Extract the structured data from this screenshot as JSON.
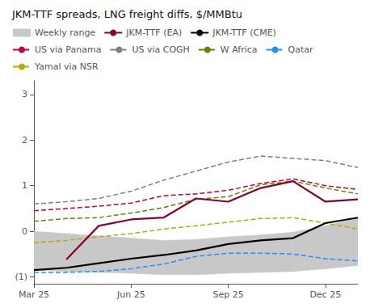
{
  "chart_data": {
    "type": "line",
    "title": "JKM-TTF spreads, LNG freight diffs, $/MMBtu",
    "categories": [
      "Mar 25",
      null,
      null,
      "Jun 25",
      null,
      null,
      "Sep 25",
      null,
      null,
      "Dec 25",
      null
    ],
    "ylim": [
      -1.15,
      3.3
    ],
    "yticks": [
      {
        "value": -1,
        "label": "(1)"
      },
      0,
      1,
      2,
      3
    ],
    "grid": false,
    "legend": "upper left",
    "series": [
      {
        "name": "Weekly range",
        "type": "band",
        "color": "#C8C8C8",
        "lower": [
          -0.85,
          -0.88,
          -0.9,
          -0.92,
          -0.95,
          -0.95,
          -0.92,
          -0.9,
          -0.88,
          -0.82,
          -0.75
        ],
        "upper": [
          0.0,
          -0.05,
          -0.1,
          -0.15,
          -0.2,
          -0.18,
          -0.12,
          -0.08,
          -0.02,
          0.12,
          0.28
        ]
      },
      {
        "name": "JKM-TTF (EA)",
        "color": "#8B0032",
        "line_style": "solid",
        "values": [
          null,
          -0.62,
          0.12,
          0.26,
          0.3,
          0.72,
          0.65,
          0.95,
          1.1,
          0.65,
          0.7
        ]
      },
      {
        "name": "JKM-TTF (CME)",
        "color": "#000000",
        "line_style": "solid",
        "values": [
          -0.85,
          -0.8,
          -0.7,
          -0.6,
          -0.52,
          -0.42,
          -0.28,
          -0.2,
          -0.15,
          0.18,
          0.3
        ]
      },
      {
        "name": "US via Panama",
        "color": "#C0003C",
        "line_style": "dashed",
        "values": [
          0.45,
          0.5,
          0.55,
          0.62,
          0.78,
          0.82,
          0.9,
          1.05,
          1.15,
          1.0,
          0.92
        ]
      },
      {
        "name": "US via COGH",
        "color": "#808080",
        "line_style": "dashed",
        "values": [
          0.6,
          0.65,
          0.72,
          0.88,
          1.12,
          1.32,
          1.52,
          1.65,
          1.6,
          1.55,
          1.4
        ]
      },
      {
        "name": "W Africa",
        "color": "#5A8A00",
        "line_style": "dashed",
        "values": [
          0.22,
          0.28,
          0.3,
          0.4,
          0.52,
          0.7,
          0.76,
          1.02,
          1.1,
          0.95,
          0.82
        ]
      },
      {
        "name": "Qatar",
        "color": "#1E90FF",
        "line_style": "dashed",
        "values": [
          -0.9,
          -0.9,
          -0.88,
          -0.82,
          -0.72,
          -0.55,
          -0.48,
          -0.48,
          -0.5,
          -0.6,
          -0.65
        ]
      },
      {
        "name": "Yamal via NSR",
        "color": "#B8A800",
        "line_style": "dashed",
        "values": [
          -0.25,
          -0.2,
          -0.12,
          -0.05,
          0.05,
          0.12,
          0.2,
          0.28,
          0.3,
          0.18,
          0.05
        ]
      }
    ]
  }
}
